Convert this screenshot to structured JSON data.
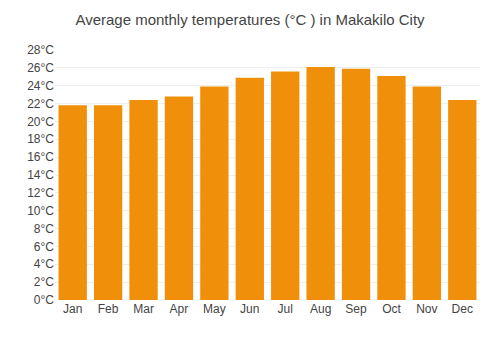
{
  "chart_data": {
    "type": "bar",
    "title": "Average monthly temperatures (°C ) in Makakilo City",
    "categories": [
      "Jan",
      "Feb",
      "Mar",
      "Apr",
      "May",
      "Jun",
      "Jul",
      "Aug",
      "Sep",
      "Oct",
      "Nov",
      "Dec"
    ],
    "values": [
      21.8,
      21.8,
      22.4,
      22.8,
      23.9,
      24.9,
      25.6,
      26.1,
      25.9,
      25.1,
      23.9,
      22.4
    ],
    "color": "#F0900A",
    "ylim": [
      0,
      28
    ],
    "yticks": [
      {
        "value": 0,
        "label": "0°C"
      },
      {
        "value": 2,
        "label": "2°C"
      },
      {
        "value": 4,
        "label": "4°C"
      },
      {
        "value": 6,
        "label": "6°C"
      },
      {
        "value": 8,
        "label": "8°C"
      },
      {
        "value": 10,
        "label": "10°C"
      },
      {
        "value": 12,
        "label": "12°C"
      },
      {
        "value": 14,
        "label": "14°C"
      },
      {
        "value": 16,
        "label": "16°C"
      },
      {
        "value": 18,
        "label": "18°C"
      },
      {
        "value": 20,
        "label": "20°C"
      },
      {
        "value": 22,
        "label": "22°C"
      },
      {
        "value": 24,
        "label": "24°C"
      },
      {
        "value": 26,
        "label": "26°C"
      },
      {
        "value": 28,
        "label": "28°C"
      }
    ],
    "grid": true
  }
}
